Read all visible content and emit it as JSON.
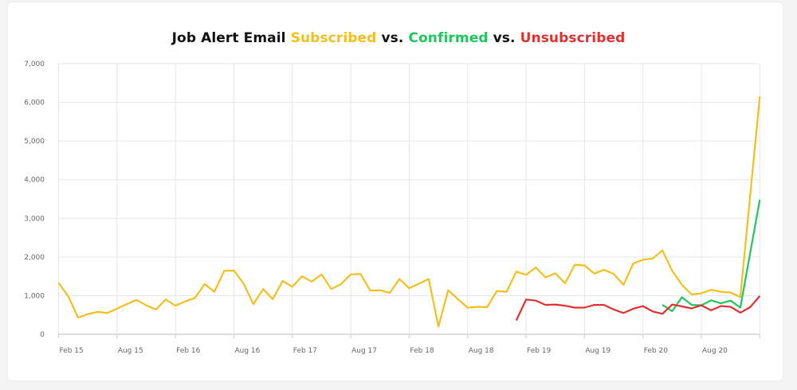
{
  "chart_data": {
    "type": "line",
    "title_parts": [
      {
        "text": "Job Alert Email ",
        "color": "#111111"
      },
      {
        "text": "Subscribed",
        "color": "#f2c01e"
      },
      {
        "text": " vs. ",
        "color": "#111111"
      },
      {
        "text": "Confirmed",
        "color": "#22c55e"
      },
      {
        "text": " vs. ",
        "color": "#111111"
      },
      {
        "text": "Unsubscribed",
        "color": "#e03131"
      }
    ],
    "x_start": "Feb 15",
    "x_interval": "monthly",
    "x_tick_labels": [
      "Feb 15",
      "Aug 15",
      "Feb 16",
      "Aug 16",
      "Feb 17",
      "Aug 17",
      "Feb 18",
      "Aug 18",
      "Feb 19",
      "Aug 19",
      "Feb 20",
      "Aug 20",
      ""
    ],
    "y_ticks": [
      "0",
      "1,000",
      "2,000",
      "3,000",
      "4,000",
      "5,000",
      "6,000",
      "7,000"
    ],
    "ylim": [
      0,
      7000
    ],
    "grid": true,
    "series": [
      {
        "name": "Subscribed",
        "color": "#f2c01e",
        "start_index": 0,
        "values": [
          1330,
          980,
          430,
          520,
          580,
          550,
          660,
          780,
          890,
          750,
          640,
          900,
          740,
          850,
          940,
          1300,
          1100,
          1640,
          1650,
          1310,
          780,
          1170,
          910,
          1380,
          1230,
          1500,
          1360,
          1550,
          1170,
          1300,
          1550,
          1560,
          1130,
          1140,
          1070,
          1430,
          1190,
          1310,
          1430,
          200,
          1140,
          910,
          690,
          710,
          700,
          1120,
          1100,
          1620,
          1540,
          1730,
          1470,
          1580,
          1320,
          1800,
          1780,
          1570,
          1670,
          1560,
          1280,
          1830,
          1930,
          1960,
          2170,
          1640,
          1280,
          1030,
          1060,
          1150,
          1100,
          1080,
          960,
          3560,
          6150
        ]
      },
      {
        "name": "Confirmed",
        "color": "#22c55e",
        "start_index": 62,
        "values": [
          760,
          600,
          960,
          760,
          750,
          880,
          800,
          870,
          690,
          2090,
          3480
        ]
      },
      {
        "name": "Unsubscribed",
        "color": "#e03131",
        "start_index": 47,
        "values": [
          360,
          900,
          870,
          760,
          770,
          740,
          690,
          690,
          760,
          760,
          640,
          550,
          660,
          730,
          590,
          530,
          770,
          720,
          670,
          750,
          620,
          730,
          710,
          560,
          700,
          990
        ]
      }
    ]
  }
}
